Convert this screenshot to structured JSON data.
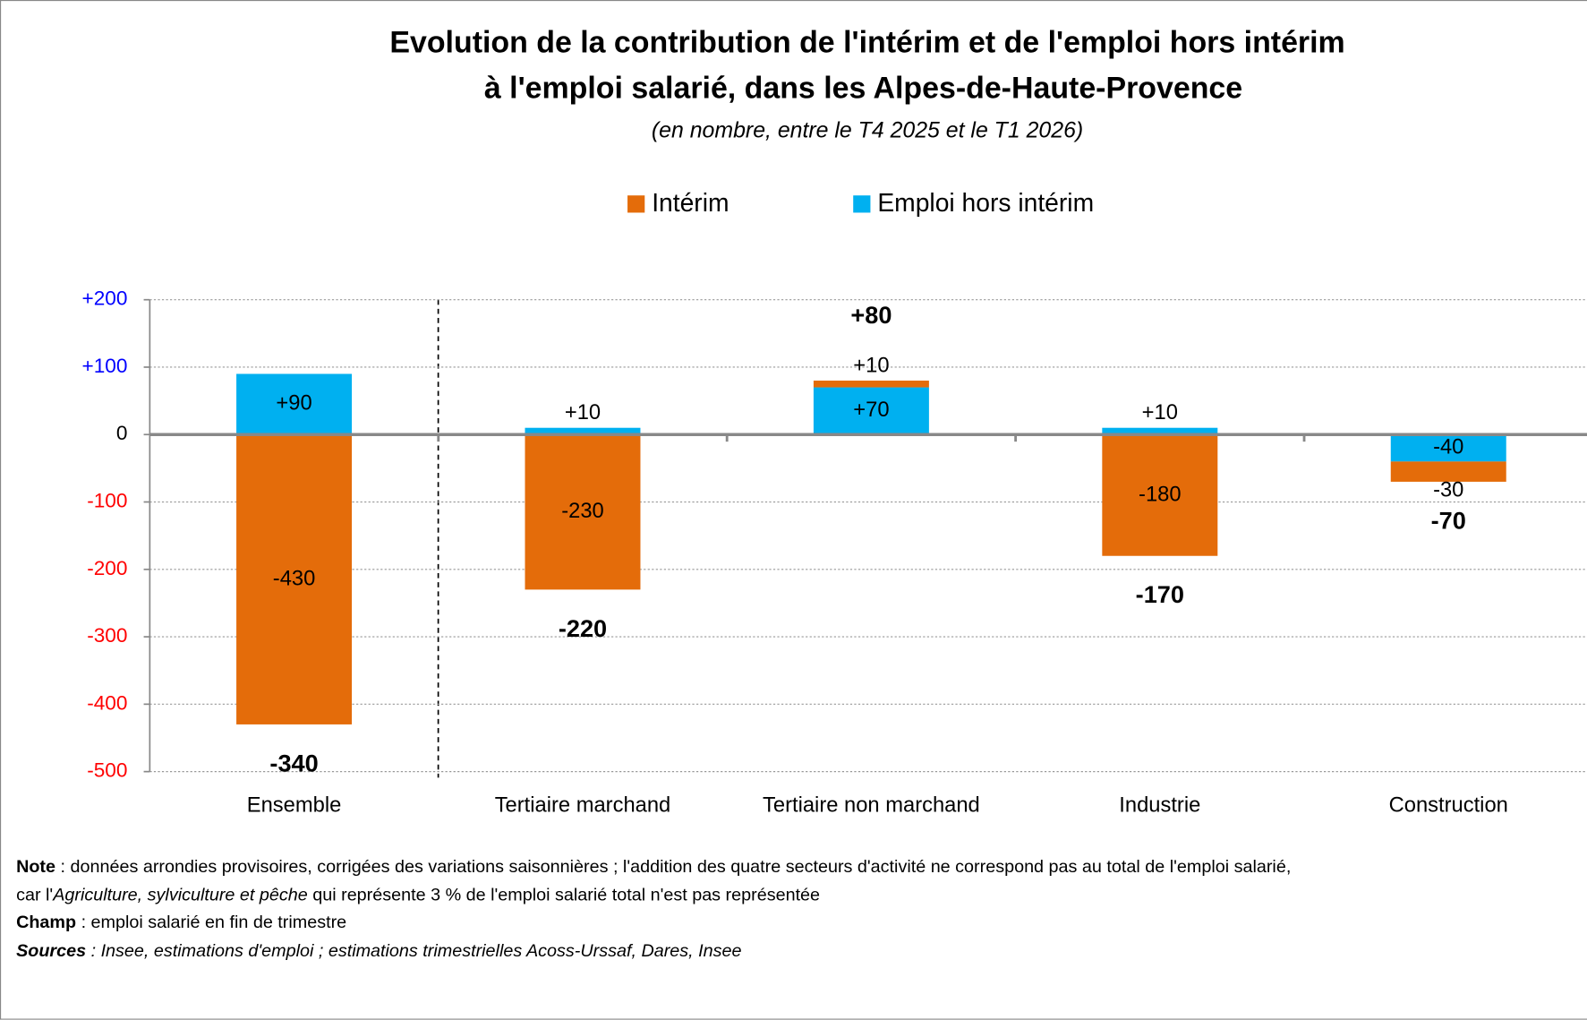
{
  "chart_data": {
    "type": "bar",
    "stacked": true,
    "title": [
      "Evolution de la contribution de l'intérim et de l'emploi hors intérim",
      "à l'emploi salarié, dans les Alpes-de-Haute-Provence"
    ],
    "subtitle": "(en nombre, entre le T4 2025 et le T1 2026)",
    "categories": [
      "Ensemble",
      "Tertiaire marchand",
      "Tertiaire non marchand",
      "Industrie",
      "Construction"
    ],
    "series": [
      {
        "name": "Intérim",
        "color": "#e46c0a",
        "values": [
          -430,
          -230,
          10,
          -180,
          -30
        ],
        "value_labels": [
          "-430",
          "-230",
          "+10",
          "-180",
          "-30"
        ]
      },
      {
        "name": "Emploi hors intérim",
        "color": "#00b0f0",
        "values": [
          90,
          10,
          70,
          10,
          -40
        ],
        "value_labels": [
          "+90",
          "+10",
          "+70",
          "+10",
          "-40"
        ]
      }
    ],
    "totals": {
      "values": [
        -340,
        -220,
        80,
        -170,
        -70
      ],
      "value_labels": [
        "-340",
        "-220",
        "+80",
        "-170",
        "-70"
      ]
    },
    "ylim": [
      -500,
      200
    ],
    "yticks": [
      {
        "value": 200,
        "label": "+200"
      },
      {
        "value": 100,
        "label": "+100"
      },
      0,
      -100,
      -200,
      -300,
      -400,
      -500
    ],
    "ytick_label_colors": {
      "positive": "#0000ff",
      "zero": "#000000",
      "negative": "#ff0000"
    },
    "grid": true,
    "legend": "top"
  },
  "notes": {
    "note": {
      "label": "Note",
      "text1": " : données arrondies provisoires, corrigées des variations saisonnières ; l'addition des quatre secteurs d'activité ne correspond pas au total de l'emploi salarié,",
      "text2": "car l'",
      "italic": "Agriculture, sylviculture et pêche",
      "text3": " qui représente 3 % de l'emploi salarié total n'est pas représentée"
    },
    "champ": {
      "label": "Champ",
      "text": " : emploi salarié en fin de trimestre"
    },
    "sources": {
      "label": "Sources",
      "text": " : Insee, estimations d'emploi ; estimations trimestrielles Acoss-Urssaf, Dares, Insee"
    }
  }
}
